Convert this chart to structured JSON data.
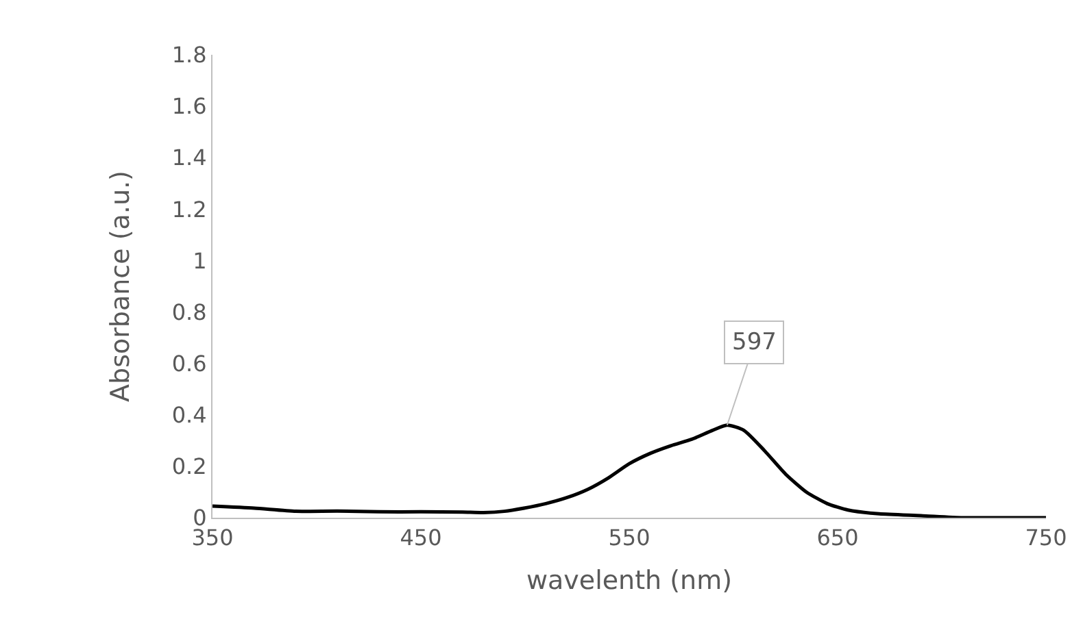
{
  "chart_data": {
    "type": "line",
    "xlabel": "wavelenth (nm)",
    "ylabel": "Absorbance (a.u.)",
    "x": [
      350,
      370,
      390,
      410,
      430,
      450,
      470,
      480,
      490,
      500,
      510,
      520,
      530,
      540,
      550,
      560,
      570,
      580,
      590,
      597,
      605,
      615,
      625,
      635,
      645,
      655,
      670,
      690,
      710,
      730,
      750
    ],
    "series": [
      {
        "color": "#000000",
        "values": [
          0.045,
          0.037,
          0.025,
          0.026,
          0.023,
          0.023,
          0.022,
          0.02,
          0.025,
          0.038,
          0.055,
          0.078,
          0.11,
          0.155,
          0.21,
          0.25,
          0.28,
          0.305,
          0.34,
          0.36,
          0.34,
          0.26,
          0.17,
          0.1,
          0.055,
          0.03,
          0.015,
          0.008,
          0,
          0,
          0
        ]
      }
    ],
    "xlim": [
      350,
      750
    ],
    "xticks": [
      350,
      450,
      550,
      650,
      750
    ],
    "ylim": [
      0,
      1.8
    ],
    "yticks": [
      0,
      0.2,
      0.4,
      0.6,
      0.8,
      1,
      1.2,
      1.4,
      1.6,
      1.8
    ],
    "annotations": [
      {
        "text": "597",
        "x": 597,
        "y": 0.36
      }
    ],
    "marker": "none",
    "line_style": "solid"
  }
}
